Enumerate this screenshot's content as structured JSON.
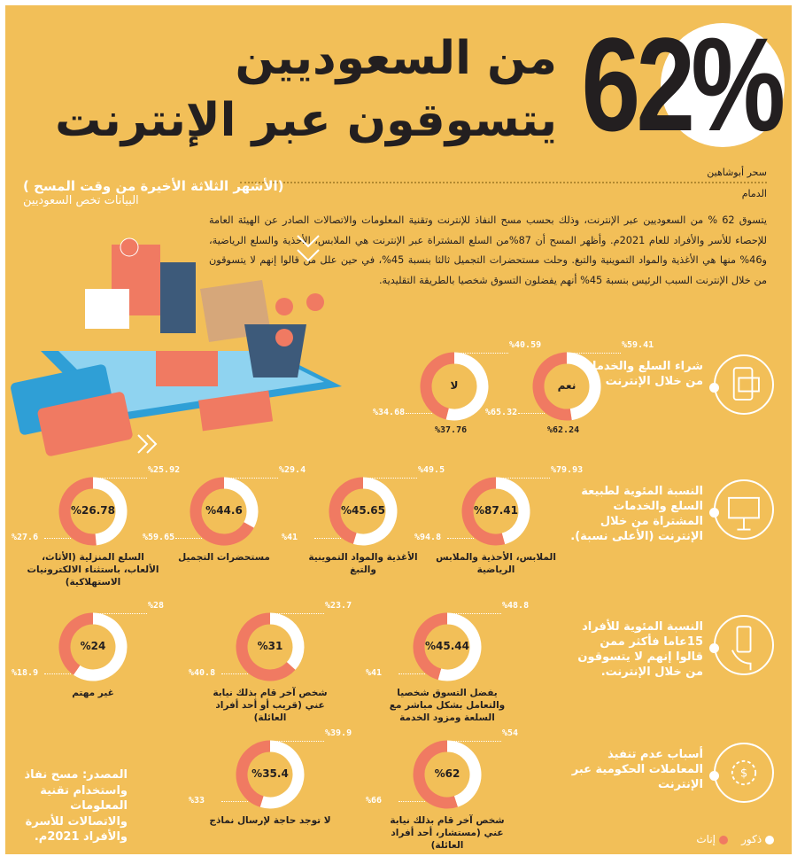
{
  "header": {
    "big_number": "62%",
    "title_line1": "من السعوديين",
    "title_line2": "يتسوقون عبر الإنترنت"
  },
  "byline": {
    "author": "سحر أبوشاهين",
    "city": "الدمام"
  },
  "intro": "يتسوق 62 % من السعوديين عبر الإنترنت، وذلك بحسب مسح النفاذ للإنترنت وتقنية المعلومات والاتصالات الصادر عن الهيئة العامة للإحصاء للأسر والأفراد للعام 2021م. وأظهر المسح أن 87%من السلع المشتراة عبر الإنترنت هي الملابس، الأحذية والسلع الرياضية، و46% منها هي الأغذية والمواد التموينية والتبغ. وحلت مستحضرات التجميل ثالثا بنسبة 45%، في حين علل من قالوا إنهم لا يتسوقون من خلال الإنترنت السبب الرئيس بنسبة 45% أنهم يفضلون التسوق شخصيا بالطريقة التقليدية.",
  "subtitle": {
    "period": "( الأشهر الثلاثة الأخيرة من وقت المسح)",
    "scope": "البيانات تخص السعوديين"
  },
  "colors": {
    "background": "#f2bf58",
    "male": "#ffffff",
    "female": "#f07a62",
    "text": "#231f20"
  },
  "sections": [
    {
      "title": "شراء السلع والخدمات من خلال الإنترنت",
      "icon": "mobile-card-icon",
      "donuts": [
        {
          "center": "نعم",
          "male": "%59.41",
          "female": "%65.32",
          "label": "%62.24"
        },
        {
          "center": "لا",
          "male": "%40.59",
          "female": "%34.68",
          "label": "%37.76"
        }
      ]
    },
    {
      "title": "النسبة المئوية لطبيعة السلع والخدمات المشتراة من خلال الإنترنت (الأعلى نسبة).",
      "icon": "presentation-chart-icon",
      "donuts": [
        {
          "center": "%87.41",
          "male": "%79.93",
          "female": "%94.8",
          "label": "الملابس، الأحذية والملابس الرياضية"
        },
        {
          "center": "%45.65",
          "male": "%49.5",
          "female": "%41",
          "label": "الأغذية والمواد التموينية والتبغ"
        },
        {
          "center": "%44.6",
          "male": "%29.4",
          "female": "%59.65",
          "label": "مستحضرات التجميل"
        },
        {
          "center": "%26.78",
          "male": "%25.92",
          "female": "%27.6",
          "label": "السلع المنزلية (الأثاث، الألعاب، باستثناء الالكترونيات الاستهلاكية)"
        }
      ]
    },
    {
      "title": "النسبة المئوية للأفراد 15عاما فأكثر ممن قالوا إنهم لا يتسوقون من خلال الإنترنت.",
      "icon": "hand-phone-icon",
      "donuts": [
        {
          "center": "%45.44",
          "male": "%48.8",
          "female": "%41",
          "label": "يفضل التسوق شخصيا والتعامل بشكل مباشر مع السلعة ومزود الخدمة"
        },
        {
          "center": "%31",
          "male": "%23.7",
          "female": "%40.8",
          "label": "شخص آخر قام بذلك نيابة عني (قريب أو أحد أفراد العائلة)"
        },
        {
          "center": "%24",
          "male": "%28",
          "female": "%18.9",
          "label": "غير مهتم"
        }
      ]
    },
    {
      "title": "أسباب عدم تنفيذ المعاملات الحكومية عبر الإنترنت",
      "icon": "gear-dollar-icon",
      "donuts": [
        {
          "center": "%62",
          "male": "%54",
          "female": "%66",
          "label": "شخص آخر قام بذلك نيابة عني (مستشار، أحد أفراد العائلة)"
        },
        {
          "center": "%35.4",
          "male": "%39.9",
          "female": "%33",
          "label": "لا توجد حاجة لإرسال نماذج"
        }
      ]
    }
  ],
  "source": "المصدر: مسح نفاذ واستخدام تقنية المعلومات والاتصالات للأسرة والأفراد 2021م.",
  "legend": {
    "male": "ذكور",
    "female": "إناث"
  }
}
